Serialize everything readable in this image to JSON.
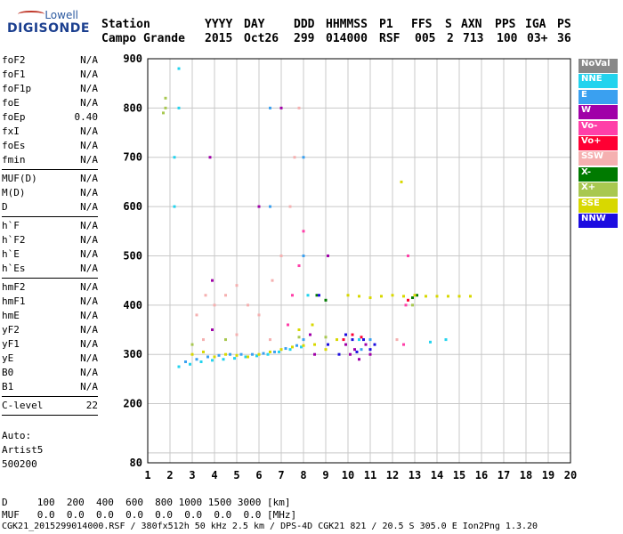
{
  "header": {
    "labels": [
      "Station",
      "YYYY",
      "DAY",
      "DDD",
      "HHMMSS",
      "P1",
      "FFS",
      "S",
      "AXN",
      "PPS",
      "IGA",
      "PS"
    ],
    "values": [
      "Campo Grande",
      "2015",
      "Oct26",
      "299",
      "014000",
      "RSF",
      "005",
      "2",
      "713",
      "100",
      "03+",
      "36"
    ]
  },
  "logo": {
    "line1": "Lowell",
    "line2": "DIGISONDE"
  },
  "params": [
    [
      {
        "name": "foF2",
        "value": "N/A"
      },
      {
        "name": "foF1",
        "value": "N/A"
      },
      {
        "name": "foF1p",
        "value": "N/A"
      },
      {
        "name": "foE",
        "value": "N/A"
      },
      {
        "name": "foEp",
        "value": "0.40"
      },
      {
        "name": "fxI",
        "value": "N/A"
      },
      {
        "name": "foEs",
        "value": "N/A"
      },
      {
        "name": "fmin",
        "value": "N/A"
      }
    ],
    [
      {
        "name": "MUF(D)",
        "value": "N/A"
      },
      {
        "name": "M(D)",
        "value": "N/A"
      },
      {
        "name": "D",
        "value": "N/A"
      }
    ],
    [
      {
        "name": "h`F",
        "value": "N/A"
      },
      {
        "name": "h`F2",
        "value": "N/A"
      },
      {
        "name": "h`E",
        "value": "N/A"
      },
      {
        "name": "h`Es",
        "value": "N/A"
      }
    ],
    [
      {
        "name": "hmF2",
        "value": "N/A"
      },
      {
        "name": "hmF1",
        "value": "N/A"
      },
      {
        "name": "hmE",
        "value": "N/A"
      },
      {
        "name": "yF2",
        "value": "N/A"
      },
      {
        "name": "yF1",
        "value": "N/A"
      },
      {
        "name": "yE",
        "value": "N/A"
      },
      {
        "name": "B0",
        "value": "N/A"
      },
      {
        "name": "B1",
        "value": "N/A"
      }
    ],
    [
      {
        "name": "C-level",
        "value": "22"
      }
    ]
  ],
  "auto": [
    "Auto:",
    "Artist5",
    "500200"
  ],
  "legend": [
    {
      "label": "NoVal",
      "color": "#888888"
    },
    {
      "label": "NNE",
      "color": "#22d3ee"
    },
    {
      "label": "E",
      "color": "#3aa0f0"
    },
    {
      "label": "W",
      "color": "#a000a8"
    },
    {
      "label": "Vo-",
      "color": "#ff3fa8"
    },
    {
      "label": "Vo+",
      "color": "#ff0033"
    },
    {
      "label": "SSW",
      "color": "#f5b0b0"
    },
    {
      "label": "X-",
      "color": "#007a00"
    },
    {
      "label": "X+",
      "color": "#a8c850"
    },
    {
      "label": "SSE",
      "color": "#d8d800"
    },
    {
      "label": "NNW",
      "color": "#1c0ce0"
    }
  ],
  "bottom": {
    "d_row": "D     100  200  400  600  800 1000 1500 3000 [km]",
    "muf_row": "MUF   0.0  0.0  0.0  0.0  0.0  0.0  0.0  0.0 [MHz]",
    "footer": "CGK21_2015299014000.RSF / 380fx512h 50 kHz 2.5 km / DPS-4D CGK21 821 / 20.5 S 305.0 E Ion2Png 1.3.20"
  },
  "chart_data": {
    "type": "scatter",
    "xlim": [
      1,
      20
    ],
    "ylim": [
      80,
      900
    ],
    "xticks": [
      "1",
      "2",
      "3",
      "4",
      "5",
      "6",
      "7",
      "8",
      "9",
      "10",
      "11",
      "12",
      "13",
      "14",
      "15",
      "16",
      "17",
      "18",
      "19",
      "20"
    ],
    "yticks": [
      "80",
      "200",
      "300",
      "400",
      "500",
      "600",
      "700",
      "800",
      "900"
    ],
    "grid": true,
    "series": [
      {
        "name": "NNE",
        "color": "#22d3ee",
        "points": [
          [
            2.4,
            275
          ],
          [
            2.9,
            280
          ],
          [
            3.4,
            285
          ],
          [
            3.9,
            288
          ],
          [
            4.4,
            290
          ],
          [
            4.9,
            292
          ],
          [
            5.4,
            295
          ],
          [
            5.9,
            297
          ],
          [
            6.4,
            300
          ],
          [
            6.9,
            305
          ],
          [
            7.4,
            310
          ],
          [
            7.9,
            315
          ],
          [
            8.2,
            420
          ],
          [
            10.5,
            330
          ],
          [
            13.7,
            325
          ],
          [
            14.4,
            330
          ],
          [
            2.2,
            600
          ],
          [
            2.2,
            700
          ],
          [
            2.4,
            800
          ],
          [
            2.4,
            880
          ]
        ]
      },
      {
        "name": "E",
        "color": "#3aa0f0",
        "points": [
          [
            2.7,
            285
          ],
          [
            3.2,
            290
          ],
          [
            3.7,
            295
          ],
          [
            4.2,
            298
          ],
          [
            4.7,
            300
          ],
          [
            5.2,
            300
          ],
          [
            5.7,
            300
          ],
          [
            6.2,
            302
          ],
          [
            6.7,
            305
          ],
          [
            7.2,
            312
          ],
          [
            7.7,
            318
          ],
          [
            8.0,
            330
          ],
          [
            10.6,
            310
          ],
          [
            11.0,
            330
          ],
          [
            6.5,
            600
          ],
          [
            6.5,
            800
          ],
          [
            8.0,
            500
          ],
          [
            8.0,
            700
          ]
        ]
      },
      {
        "name": "W",
        "color": "#a000a8",
        "points": [
          [
            9.9,
            320
          ],
          [
            10.1,
            300
          ],
          [
            10.3,
            310
          ],
          [
            10.5,
            290
          ],
          [
            10.8,
            320
          ],
          [
            11.0,
            300
          ],
          [
            8.3,
            340
          ],
          [
            8.5,
            300
          ],
          [
            3.9,
            350
          ],
          [
            3.9,
            450
          ],
          [
            7.0,
            800
          ],
          [
            6.0,
            600
          ],
          [
            9.1,
            500
          ],
          [
            3.8,
            700
          ]
        ]
      },
      {
        "name": "Vo-",
        "color": "#ff3fa8",
        "points": [
          [
            7.3,
            360
          ],
          [
            7.5,
            420
          ],
          [
            7.8,
            480
          ],
          [
            8.0,
            550
          ],
          [
            12.5,
            320
          ],
          [
            12.6,
            400
          ],
          [
            12.7,
            500
          ]
        ]
      },
      {
        "name": "Vo+",
        "color": "#ff0033",
        "points": [
          [
            9.8,
            330
          ],
          [
            10.2,
            340
          ],
          [
            10.6,
            335
          ],
          [
            12.7,
            410
          ]
        ]
      },
      {
        "name": "SSW",
        "color": "#f5b0b0",
        "points": [
          [
            3.2,
            380
          ],
          [
            3.6,
            420
          ],
          [
            4.0,
            400
          ],
          [
            4.5,
            420
          ],
          [
            5.0,
            440
          ],
          [
            5.5,
            400
          ],
          [
            6.0,
            380
          ],
          [
            6.6,
            450
          ],
          [
            7.0,
            500
          ],
          [
            7.4,
            600
          ],
          [
            7.6,
            700
          ],
          [
            7.8,
            800
          ],
          [
            3.5,
            330
          ],
          [
            5.0,
            340
          ],
          [
            6.5,
            330
          ],
          [
            12.2,
            330
          ]
        ]
      },
      {
        "name": "X-",
        "color": "#007a00",
        "points": [
          [
            8.6,
            420
          ],
          [
            9.0,
            410
          ],
          [
            12.9,
            415
          ],
          [
            13.1,
            420
          ]
        ]
      },
      {
        "name": "X+",
        "color": "#a8c850",
        "points": [
          [
            1.7,
            790
          ],
          [
            1.8,
            800
          ],
          [
            1.8,
            820
          ],
          [
            3.0,
            320
          ],
          [
            4.5,
            330
          ],
          [
            7.8,
            335
          ],
          [
            9.0,
            335
          ],
          [
            12.9,
            400
          ]
        ]
      },
      {
        "name": "SSE",
        "color": "#d8d800",
        "points": [
          [
            3.0,
            300
          ],
          [
            3.5,
            305
          ],
          [
            4.0,
            295
          ],
          [
            4.5,
            300
          ],
          [
            5.0,
            298
          ],
          [
            5.5,
            295
          ],
          [
            6.0,
            300
          ],
          [
            6.5,
            305
          ],
          [
            7.0,
            310
          ],
          [
            7.5,
            315
          ],
          [
            8.0,
            318
          ],
          [
            8.5,
            320
          ],
          [
            9.0,
            310
          ],
          [
            10.0,
            420
          ],
          [
            10.5,
            418
          ],
          [
            11.0,
            415
          ],
          [
            11.5,
            418
          ],
          [
            12.0,
            420
          ],
          [
            12.5,
            418
          ],
          [
            13.0,
            420
          ],
          [
            13.5,
            418
          ],
          [
            14.0,
            418
          ],
          [
            14.5,
            418
          ],
          [
            15.0,
            418
          ],
          [
            15.5,
            418
          ],
          [
            7.8,
            350
          ],
          [
            8.4,
            360
          ],
          [
            9.5,
            330
          ],
          [
            12.4,
            650
          ]
        ]
      },
      {
        "name": "NNW",
        "color": "#1c0ce0",
        "points": [
          [
            9.6,
            300
          ],
          [
            9.9,
            340
          ],
          [
            10.2,
            330
          ],
          [
            10.4,
            305
          ],
          [
            10.7,
            330
          ],
          [
            11.0,
            310
          ],
          [
            11.2,
            320
          ],
          [
            8.7,
            420
          ],
          [
            9.1,
            320
          ]
        ]
      }
    ]
  }
}
